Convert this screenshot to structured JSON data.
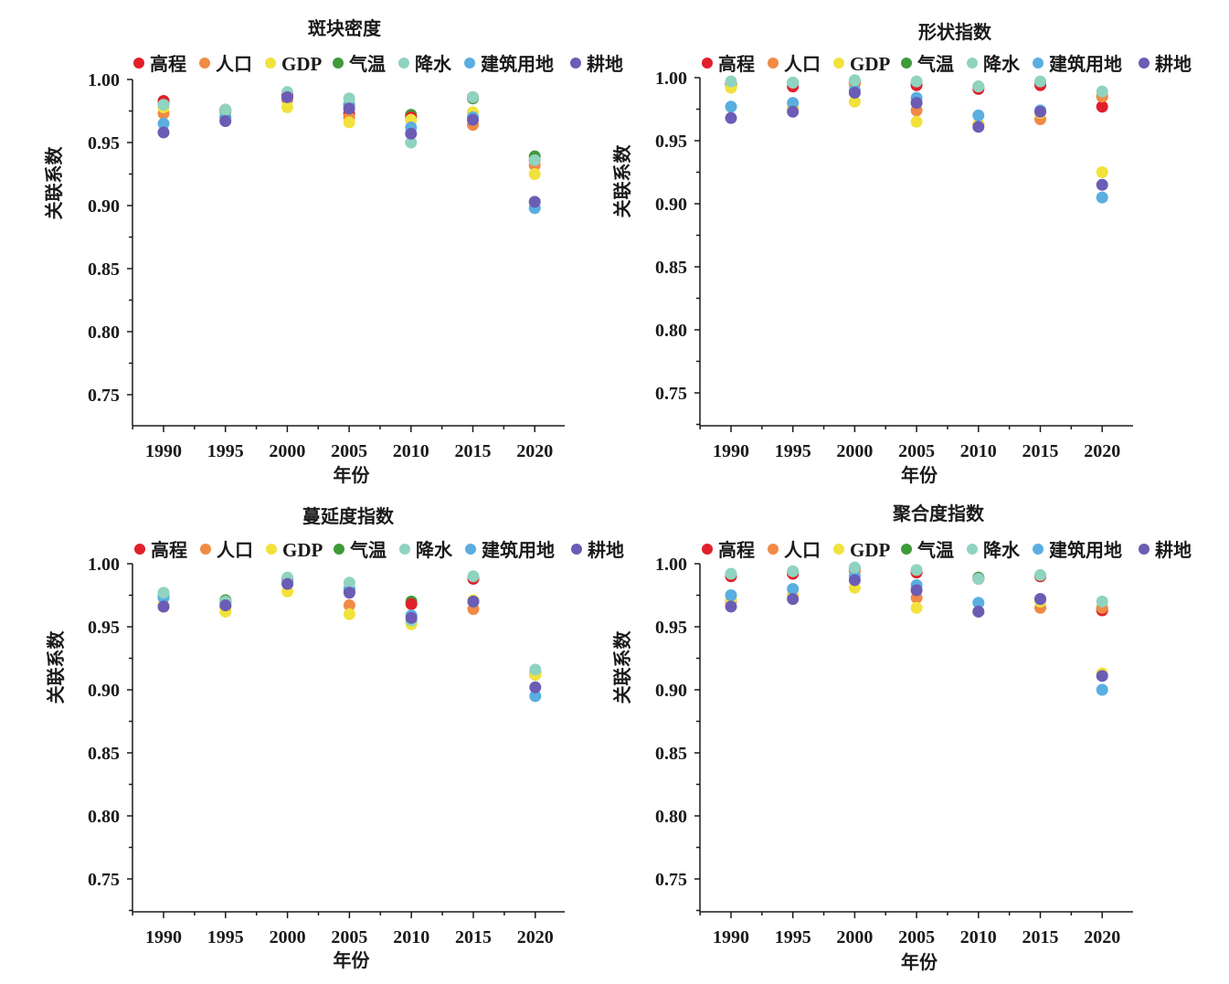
{
  "chart_data": [
    {
      "type": "scatter",
      "title": "斑块密度",
      "xlabel": "年份",
      "ylabel": "关联系数",
      "x": [
        1990,
        1995,
        2000,
        2005,
        2010,
        2015,
        2020
      ],
      "xtick_labels": [
        "1990",
        "1995",
        "2000",
        "2005",
        "2010",
        "2015",
        "2020"
      ],
      "ytick_labels": [
        "1.00",
        "0.95",
        "0.90",
        "0.85",
        "0.80",
        "0.75"
      ],
      "yticks": [
        1.0,
        0.95,
        0.9,
        0.85,
        0.8,
        0.75
      ],
      "ylim": [
        0.725,
        1.0
      ],
      "legend_position": "top",
      "series": [
        {
          "name": "高程",
          "color": "#e0202a",
          "values": [
            0.983,
            0.976,
            0.988,
            0.973,
            0.97,
            0.986,
            0.936
          ]
        },
        {
          "name": "人口",
          "color": "#f08a45",
          "values": [
            0.973,
            0.97,
            0.984,
            0.97,
            0.968,
            0.964,
            0.932
          ]
        },
        {
          "name": "GDP",
          "color": "#f2e23c",
          "values": [
            0.978,
            0.968,
            0.978,
            0.966,
            0.968,
            0.974,
            0.925
          ]
        },
        {
          "name": "气温",
          "color": "#3f9a3a",
          "values": [
            0.98,
            0.975,
            0.988,
            0.98,
            0.972,
            0.985,
            0.939
          ]
        },
        {
          "name": "降水",
          "color": "#8fd3c0",
          "values": [
            0.98,
            0.976,
            0.99,
            0.985,
            0.95,
            0.986,
            0.936
          ]
        },
        {
          "name": "建筑用地",
          "color": "#5aaee0",
          "values": [
            0.965,
            0.97,
            0.986,
            0.98,
            0.962,
            0.97,
            0.898
          ]
        },
        {
          "name": "耕地",
          "color": "#6b5cb5",
          "values": [
            0.958,
            0.967,
            0.986,
            0.977,
            0.957,
            0.968,
            0.903
          ]
        }
      ]
    },
    {
      "type": "scatter",
      "title": "形状指数",
      "xlabel": "年份",
      "ylabel": "关联系数",
      "x": [
        1990,
        1995,
        2000,
        2005,
        2010,
        2015,
        2020
      ],
      "xtick_labels": [
        "1990",
        "1995",
        "2000",
        "2005",
        "2010",
        "2015",
        "2020"
      ],
      "ytick_labels": [
        "1.00",
        "0.95",
        "0.90",
        "0.85",
        "0.80",
        "0.75"
      ],
      "yticks": [
        1.0,
        0.95,
        0.9,
        0.85,
        0.8,
        0.75
      ],
      "ylim": [
        0.725,
        1.0
      ],
      "legend_position": "top",
      "series": [
        {
          "name": "高程",
          "color": "#e0202a",
          "values": [
            0.994,
            0.993,
            0.996,
            0.994,
            0.991,
            0.994,
            0.977
          ]
        },
        {
          "name": "人口",
          "color": "#f08a45",
          "values": [
            0.993,
            0.975,
            0.995,
            0.974,
            0.963,
            0.967,
            0.985
          ]
        },
        {
          "name": "GDP",
          "color": "#f2e23c",
          "values": [
            0.992,
            0.976,
            0.981,
            0.965,
            0.963,
            0.972,
            0.925
          ]
        },
        {
          "name": "气温",
          "color": "#3f9a3a",
          "values": [
            0.995,
            0.996,
            0.997,
            0.995,
            0.993,
            0.996,
            0.985
          ]
        },
        {
          "name": "降水",
          "color": "#8fd3c0",
          "values": [
            0.997,
            0.996,
            0.998,
            0.997,
            0.993,
            0.997,
            0.989
          ]
        },
        {
          "name": "建筑用地",
          "color": "#5aaee0",
          "values": [
            0.977,
            0.98,
            0.99,
            0.984,
            0.97,
            0.974,
            0.905
          ]
        },
        {
          "name": "耕地",
          "color": "#6b5cb5",
          "values": [
            0.968,
            0.973,
            0.988,
            0.98,
            0.961,
            0.973,
            0.915
          ]
        }
      ]
    },
    {
      "type": "scatter",
      "title": "蔓延度指数",
      "xlabel": "年份",
      "ylabel": "关联系数",
      "x": [
        1990,
        1995,
        2000,
        2005,
        2010,
        2015,
        2020
      ],
      "xtick_labels": [
        "1990",
        "1995",
        "2000",
        "2005",
        "2010",
        "2015",
        "2020"
      ],
      "ytick_labels": [
        "1.00",
        "0.95",
        "0.90",
        "0.85",
        "0.80",
        "0.75"
      ],
      "yticks": [
        1.0,
        0.95,
        0.9,
        0.85,
        0.8,
        0.75
      ],
      "ylim": [
        0.725,
        1.0
      ],
      "legend_position": "top",
      "series": [
        {
          "name": "高程",
          "color": "#e0202a",
          "values": [
            0.966,
            0.97,
            0.988,
            0.978,
            0.968,
            0.988,
            0.912
          ]
        },
        {
          "name": "人口",
          "color": "#f08a45",
          "values": [
            0.966,
            0.966,
            0.985,
            0.967,
            0.954,
            0.964,
            0.912
          ]
        },
        {
          "name": "GDP",
          "color": "#f2e23c",
          "values": [
            0.967,
            0.962,
            0.978,
            0.96,
            0.952,
            0.971,
            0.912
          ]
        },
        {
          "name": "气温",
          "color": "#3f9a3a",
          "values": [
            0.974,
            0.971,
            0.988,
            0.98,
            0.97,
            0.989,
            0.914
          ]
        },
        {
          "name": "降水",
          "color": "#8fd3c0",
          "values": [
            0.977,
            0.97,
            0.989,
            0.985,
            0.955,
            0.99,
            0.916
          ]
        },
        {
          "name": "建筑用地",
          "color": "#5aaee0",
          "values": [
            0.973,
            0.969,
            0.985,
            0.98,
            0.959,
            0.97,
            0.895
          ]
        },
        {
          "name": "耕地",
          "color": "#6b5cb5",
          "values": [
            0.966,
            0.967,
            0.984,
            0.977,
            0.957,
            0.97,
            0.902
          ]
        }
      ]
    },
    {
      "type": "scatter",
      "title": "聚合度指数",
      "xlabel": "年份",
      "ylabel": "关联系数",
      "x": [
        1990,
        1995,
        2000,
        2005,
        2010,
        2015,
        2020
      ],
      "xtick_labels": [
        "1990",
        "1995",
        "2000",
        "2005",
        "2010",
        "2015",
        "2020"
      ],
      "ytick_labels": [
        "1.00",
        "0.95",
        "0.90",
        "0.85",
        "0.80",
        "0.75"
      ],
      "yticks": [
        1.0,
        0.95,
        0.9,
        0.85,
        0.8,
        0.75
      ],
      "ylim": [
        0.725,
        1.0
      ],
      "legend_position": "top",
      "series": [
        {
          "name": "高程",
          "color": "#e0202a",
          "values": [
            0.99,
            0.992,
            0.995,
            0.993,
            0.988,
            0.99,
            0.963
          ]
        },
        {
          "name": "人口",
          "color": "#f08a45",
          "values": [
            0.97,
            0.975,
            0.994,
            0.973,
            0.962,
            0.965,
            0.965
          ]
        },
        {
          "name": "GDP",
          "color": "#f2e23c",
          "values": [
            0.972,
            0.975,
            0.981,
            0.965,
            0.962,
            0.97,
            0.913
          ]
        },
        {
          "name": "气温",
          "color": "#3f9a3a",
          "values": [
            0.991,
            0.993,
            0.996,
            0.994,
            0.989,
            0.99,
            0.964
          ]
        },
        {
          "name": "降水",
          "color": "#8fd3c0",
          "values": [
            0.992,
            0.994,
            0.997,
            0.995,
            0.988,
            0.991,
            0.97
          ]
        },
        {
          "name": "建筑用地",
          "color": "#5aaee0",
          "values": [
            0.975,
            0.98,
            0.99,
            0.983,
            0.969,
            0.972,
            0.9
          ]
        },
        {
          "name": "耕地",
          "color": "#6b5cb5",
          "values": [
            0.966,
            0.972,
            0.987,
            0.979,
            0.962,
            0.972,
            0.911
          ]
        }
      ]
    }
  ]
}
